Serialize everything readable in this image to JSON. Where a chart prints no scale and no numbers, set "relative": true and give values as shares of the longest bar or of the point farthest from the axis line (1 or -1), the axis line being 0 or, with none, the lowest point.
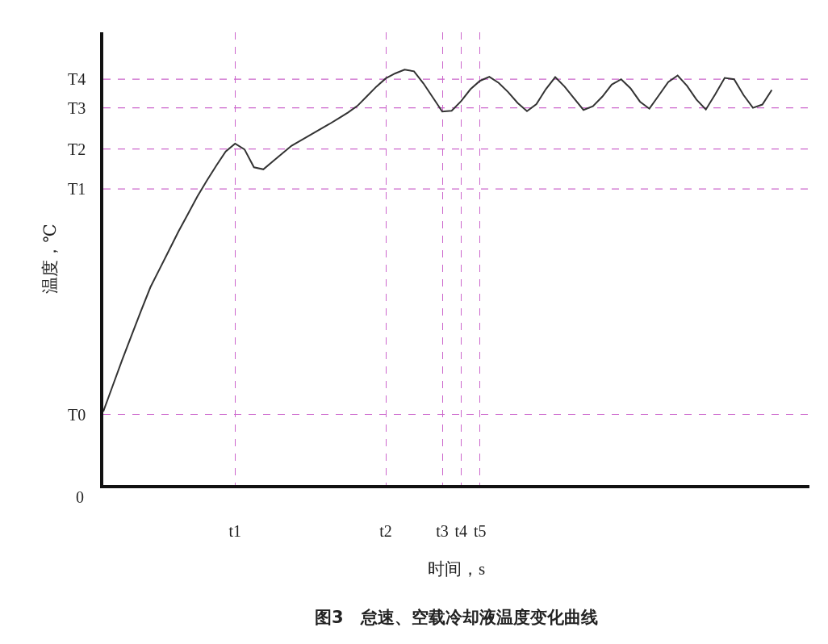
{
  "chart_data": {
    "type": "line",
    "relative": true,
    "title": "图3　怠速、空载冷却液温度变化曲线",
    "xlabel": "时间，s",
    "ylabel": "温度，℃",
    "grid": "x",
    "marker": "none",
    "line_style": "solid",
    "categories": [
      null,
      null,
      null,
      null,
      null,
      null,
      null,
      null,
      null,
      null,
      null,
      null,
      null,
      null,
      "t1",
      null,
      null,
      null,
      null,
      null,
      null,
      null,
      null,
      null,
      null,
      null,
      null,
      null,
      null,
      null,
      "t2",
      null,
      null,
      null,
      null,
      null,
      "t3",
      null,
      "t4",
      null,
      "t5",
      null,
      null,
      null,
      null,
      null,
      null,
      null,
      null,
      null,
      null,
      null,
      null,
      null,
      null,
      null,
      null,
      null,
      null,
      null,
      null,
      null,
      null,
      null,
      null,
      null,
      null,
      null,
      null,
      null,
      null,
      null,
      null,
      null,
      null,
      null
    ],
    "series": [
      {
        "color": "#333333",
        "values": [
          0.177,
          0.239,
          0.301,
          0.36,
          0.419,
          0.476,
          0.521,
          0.566,
          0.611,
          0.653,
          0.695,
          0.733,
          0.769,
          0.803,
          0.822,
          0.808,
          0.765,
          0.76,
          0.779,
          0.798,
          0.817,
          0.83,
          0.843,
          0.856,
          0.869,
          0.883,
          0.897,
          0.913,
          0.936,
          0.959,
          0.979,
          0.991,
          1,
          0.996,
          0.967,
          0.933,
          0.899,
          0.901,
          0.924,
          0.953,
          0.973,
          0.983,
          0.968,
          0.946,
          0.92,
          0.9,
          0.917,
          0.953,
          0.982,
          0.959,
          0.931,
          0.903,
          0.912,
          0.935,
          0.964,
          0.977,
          0.955,
          0.923,
          0.906,
          0.938,
          0.97,
          0.986,
          0.961,
          0.928,
          0.904,
          0.941,
          0.98,
          0.977,
          0.939,
          0.908,
          0.916,
          0.951,
          null,
          null,
          null,
          null
        ]
      }
    ],
    "ref_lines": [
      {
        "axis": "y",
        "value": 0.977,
        "label": "T4",
        "color": "#cc66cc",
        "line_style": "dashed"
      },
      {
        "axis": "y",
        "value": 0.908,
        "label": "T3",
        "color": "#cc66cc",
        "line_style": "dashed"
      },
      {
        "axis": "y",
        "value": 0.809,
        "label": "T2",
        "color": "#cc66cc",
        "line_style": "dashed"
      },
      {
        "axis": "y",
        "value": 0.713,
        "label": "T1",
        "color": "#cc66cc",
        "line_style": "dashed"
      },
      {
        "axis": "y",
        "value": 0.17,
        "label": "T0",
        "color": "#cc66cc",
        "line_style": "dashed"
      }
    ],
    "annotations": [
      "0"
    ]
  }
}
